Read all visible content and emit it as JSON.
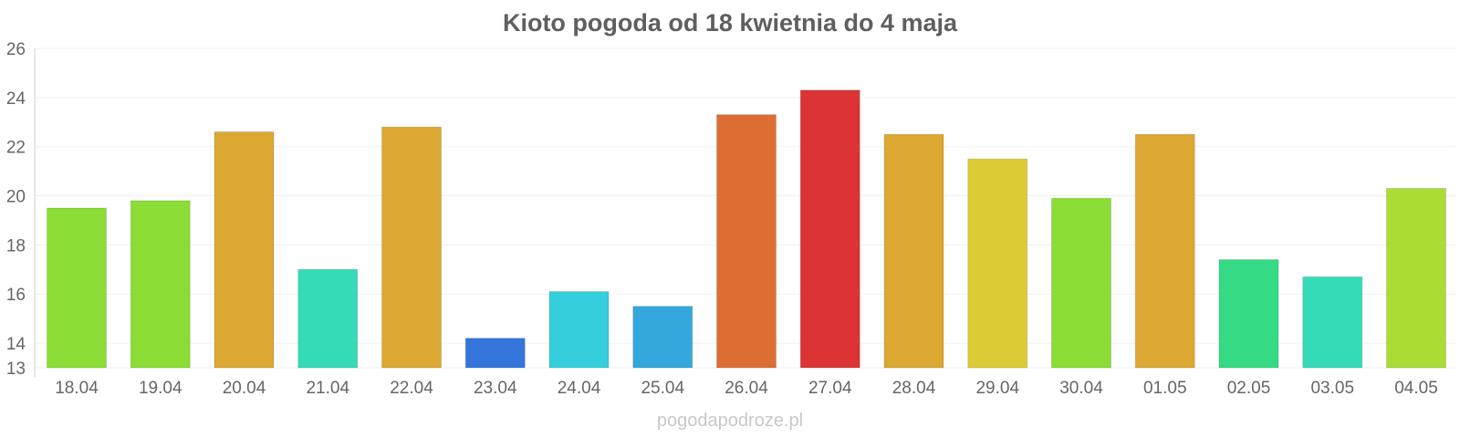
{
  "chart_data": {
    "type": "bar",
    "title": "Kioto pogoda od 18 kwietnia do 4 maja",
    "xlabel": "",
    "ylabel": "",
    "ylim": [
      13,
      26
    ],
    "yticks": [
      13,
      14,
      16,
      18,
      20,
      22,
      24,
      26
    ],
    "grid": true,
    "categories": [
      "18.04",
      "19.04",
      "20.04",
      "21.04",
      "22.04",
      "23.04",
      "24.04",
      "25.04",
      "26.04",
      "27.04",
      "28.04",
      "29.04",
      "30.04",
      "01.05",
      "02.05",
      "03.05",
      "04.05"
    ],
    "values": [
      19.5,
      19.8,
      22.6,
      17.0,
      22.8,
      14.2,
      16.1,
      15.5,
      23.3,
      24.3,
      22.5,
      21.5,
      19.9,
      22.5,
      17.4,
      16.7,
      20.3
    ],
    "colors": [
      "#8bdc35",
      "#8bdc35",
      "#dca832",
      "#34dbb6",
      "#dca832",
      "#3476dc",
      "#34cedc",
      "#34a8dc",
      "#dc6e34",
      "#dc3434",
      "#dca832",
      "#dccb34",
      "#8bdc35",
      "#dca832",
      "#34db84",
      "#34dbb6",
      "#abdc34"
    ]
  },
  "watermark": "pogodapodroze.pl"
}
